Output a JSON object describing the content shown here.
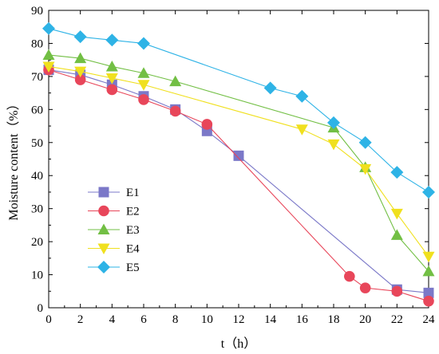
{
  "chart_data": {
    "type": "line",
    "title": "",
    "xlabel": "t（h）",
    "ylabel": "Moisture content（%）",
    "xlim": [
      0,
      24
    ],
    "ylim": [
      0,
      90
    ],
    "xticks": [
      0,
      2,
      4,
      6,
      8,
      10,
      12,
      14,
      16,
      18,
      20,
      22,
      24
    ],
    "yticks": [
      0,
      10,
      20,
      30,
      40,
      50,
      60,
      70,
      80,
      90
    ],
    "grid": false,
    "legend_position": "lower-left",
    "series": [
      {
        "name": "E1",
        "marker": "square",
        "color": "#7b78c8",
        "x": [
          0,
          2,
          4,
          6,
          8,
          10,
          12,
          22,
          24
        ],
        "y": [
          72,
          70.5,
          67.5,
          64,
          60,
          53.5,
          46,
          5.5,
          4.5
        ]
      },
      {
        "name": "E2",
        "marker": "circle",
        "color": "#e8465a",
        "x": [
          0,
          2,
          4,
          6,
          8,
          10,
          19,
          20,
          22,
          24
        ],
        "y": [
          72,
          69,
          66,
          63,
          59.5,
          55.5,
          9.5,
          6,
          5,
          2
        ]
      },
      {
        "name": "E3",
        "marker": "triangle-up",
        "color": "#72bf44",
        "x": [
          0,
          2,
          4,
          6,
          8,
          18,
          20,
          22,
          24
        ],
        "y": [
          76.5,
          75.5,
          73,
          71,
          68.5,
          54.5,
          42.5,
          22,
          11
        ]
      },
      {
        "name": "E4",
        "marker": "triangle-down",
        "color": "#f0e01e",
        "x": [
          0,
          2,
          4,
          6,
          16,
          18,
          20,
          22,
          24
        ],
        "y": [
          73,
          71.5,
          69.5,
          67.5,
          54,
          49.5,
          42,
          28.5,
          15.5
        ]
      },
      {
        "name": "E5",
        "marker": "diamond",
        "color": "#2eb3e6",
        "x": [
          0,
          2,
          4,
          6,
          14,
          16,
          18,
          20,
          22,
          24
        ],
        "y": [
          84.5,
          82,
          81,
          80,
          66.5,
          64,
          56,
          50,
          41,
          35
        ]
      }
    ]
  }
}
